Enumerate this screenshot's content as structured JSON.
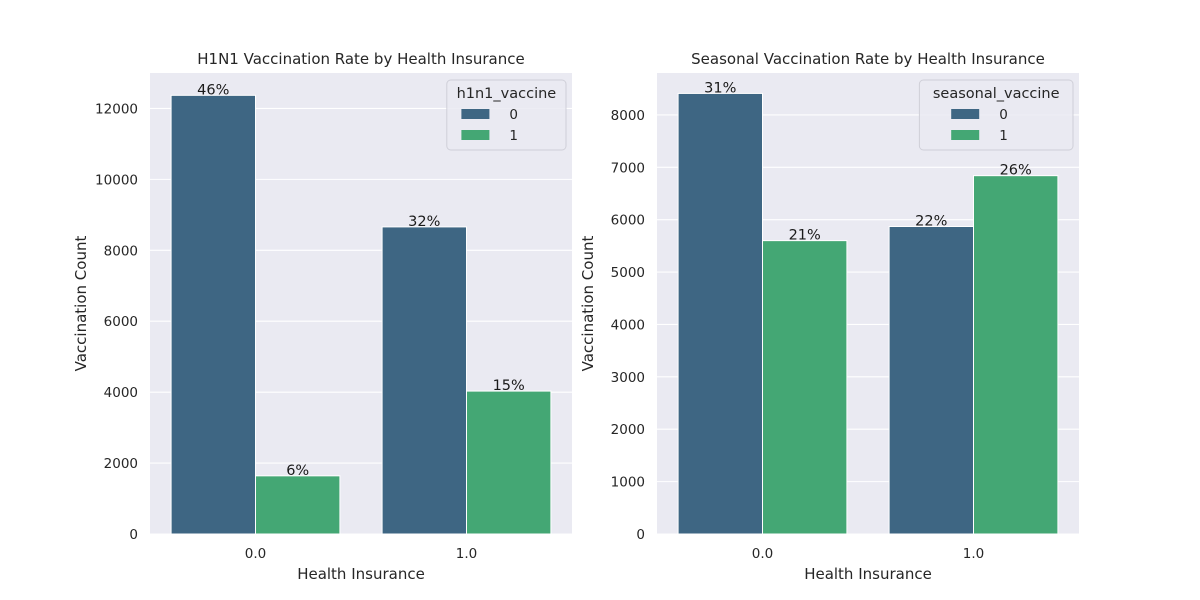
{
  "colors": {
    "series_0": "#3e6683",
    "series_1": "#44a774",
    "panel_bg": "#eaeaf2",
    "grid": "#ffffff"
  },
  "chart_data": [
    {
      "type": "bar",
      "title": "H1N1 Vaccination Rate by Health Insurance",
      "xlabel": "Health Insurance",
      "ylabel": "Vaccination Count",
      "categories": [
        "0.0",
        "1.0"
      ],
      "ylim": [
        0,
        13000
      ],
      "yticks": [
        0,
        2000,
        4000,
        6000,
        8000,
        10000,
        12000
      ],
      "grid": true,
      "legend": {
        "title": "h1n1_vaccine",
        "position": "top-right"
      },
      "series": [
        {
          "name": "0",
          "values": [
            12370,
            8660
          ],
          "labels": [
            "46%",
            "32%"
          ]
        },
        {
          "name": "1",
          "values": [
            1640,
            4030
          ],
          "labels": [
            "6%",
            "15%"
          ]
        }
      ]
    },
    {
      "type": "bar",
      "title": "Seasonal Vaccination Rate by Health Insurance",
      "xlabel": "Health Insurance",
      "ylabel": "Vaccination Count",
      "categories": [
        "0.0",
        "1.0"
      ],
      "ylim": [
        0,
        8800
      ],
      "yticks": [
        0,
        1000,
        2000,
        3000,
        4000,
        5000,
        6000,
        7000,
        8000
      ],
      "grid": true,
      "legend": {
        "title": "seasonal_vaccine",
        "position": "top-right"
      },
      "series": [
        {
          "name": "0",
          "values": [
            8410,
            5870
          ],
          "labels": [
            "31%",
            "22%"
          ]
        },
        {
          "name": "1",
          "values": [
            5600,
            6840
          ],
          "labels": [
            "21%",
            "26%"
          ]
        }
      ]
    }
  ]
}
